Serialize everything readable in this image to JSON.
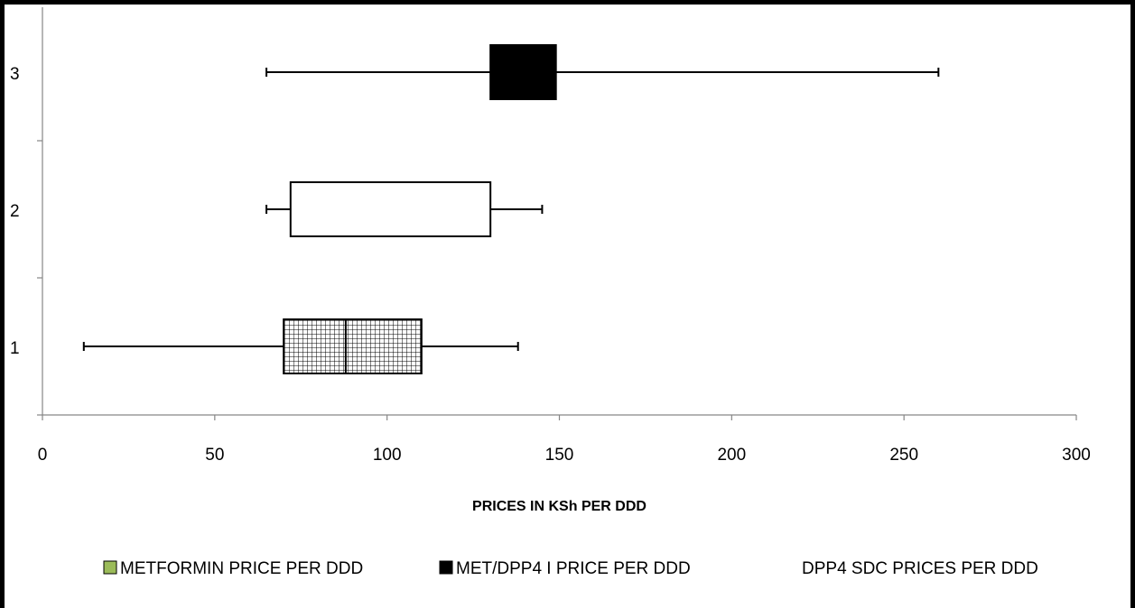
{
  "chart_data": {
    "type": "boxplot",
    "orientation": "horizontal",
    "xlabel": "PRICES IN KSh PER DDD",
    "xlim": [
      0,
      300
    ],
    "x_ticks": [
      "0",
      "50",
      "100",
      "150",
      "200",
      "250",
      "300"
    ],
    "categories": [
      "1",
      "2",
      "3"
    ],
    "boxes": [
      {
        "category": "1",
        "min": 12,
        "q1": 70,
        "median": 88,
        "q3": 110,
        "max": 138,
        "fill": "hatched"
      },
      {
        "category": "2",
        "min": 65,
        "q1": 72,
        "q3": 130,
        "max": 145,
        "fill": "white"
      },
      {
        "category": "3",
        "min": 65,
        "q1": 130,
        "q3": 149,
        "max": 260,
        "fill": "black"
      }
    ],
    "legend": {
      "placement": "bottom",
      "entries": [
        {
          "label": "METFORMIN PRICE PER DDD",
          "color": "#9BBB59"
        },
        {
          "label": "MET/DPP4 I PRICE PER DDD",
          "color": "#000000"
        },
        {
          "label": "DPP4 SDC PRICES PER DDD",
          "color": "none"
        }
      ]
    },
    "grid": false
  }
}
